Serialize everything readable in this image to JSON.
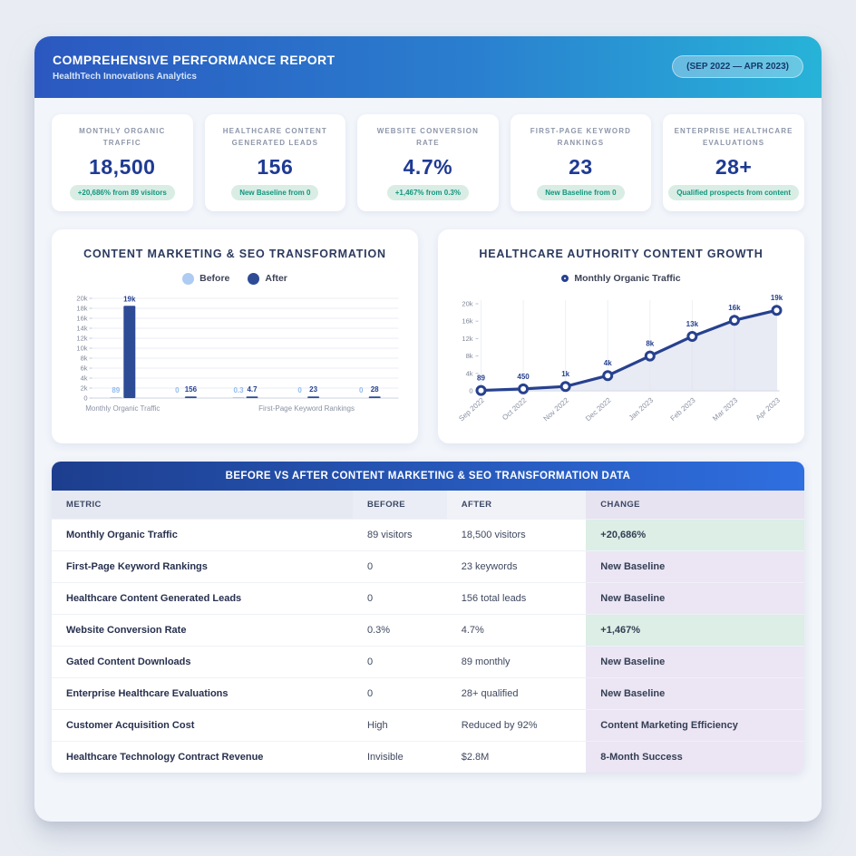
{
  "header": {
    "title": "COMPREHENSIVE PERFORMANCE REPORT",
    "subtitle": "HealthTech Innovations Analytics",
    "period_badge": "(SEP 2022 — APR 2023)"
  },
  "kpis": [
    {
      "label": "MONTHLY ORGANIC TRAFFIC",
      "value": "18,500",
      "badge": "+20,686% from 89 visitors"
    },
    {
      "label": "HEALTHCARE CONTENT GENERATED LEADS",
      "value": "156",
      "badge": "New Baseline from 0"
    },
    {
      "label": "WEBSITE CONVERSION RATE",
      "value": "4.7%",
      "badge": "+1,467% from 0.3%"
    },
    {
      "label": "FIRST-PAGE KEYWORD RANKINGS",
      "value": "23",
      "badge": "New Baseline from 0"
    },
    {
      "label": "ENTERPRISE HEALTHCARE EVALUATIONS",
      "value": "28+",
      "badge": "Qualified prospects from content"
    }
  ],
  "chart_data": [
    {
      "type": "bar",
      "title": "CONTENT MARKETING & SEO TRANSFORMATION",
      "categories": [
        "Monthly Organic Traffic",
        "Healthcare Content Generated Leads",
        "Website Conversion Rate",
        "First-Page Keyword Rankings",
        "Enterprise Healthcare Evaluations"
      ],
      "x_axis_labels_shown": [
        {
          "index": 0,
          "label": "Monthly Organic Traffic"
        },
        {
          "index": 3,
          "label": "First-Page Keyword Rankings"
        }
      ],
      "series": [
        {
          "name": "Before",
          "values": [
            89,
            0,
            0.3,
            0,
            0
          ],
          "labels": [
            "89",
            "0",
            "0.3",
            "0",
            "0"
          ],
          "color": "#aecbf2"
        },
        {
          "name": "After",
          "values": [
            18500,
            156,
            4.7,
            23,
            28
          ],
          "labels": [
            "19k",
            "156",
            "4.7",
            "23",
            "28"
          ],
          "color": "#2e4b96"
        }
      ],
      "ylim": [
        0,
        20000
      ],
      "y_ticks": [
        "0",
        "2k",
        "4k",
        "6k",
        "8k",
        "10k",
        "12k",
        "14k",
        "16k",
        "18k",
        "20k"
      ],
      "grid": "horizontal",
      "legend_position": "top"
    },
    {
      "type": "line",
      "title": "HEALTHCARE AUTHORITY CONTENT GROWTH",
      "x": [
        "Sep 2022",
        "Oct 2022",
        "Nov 2022",
        "Dec 2022",
        "Jan 2023",
        "Feb 2023",
        "Mar 2023",
        "Apr 2023"
      ],
      "series": [
        {
          "name": "Monthly Organic Traffic",
          "values": [
            89,
            450,
            1000,
            3500,
            8000,
            12500,
            16200,
            18500
          ],
          "labels": [
            "89",
            "450",
            "1k",
            "4k",
            "8k",
            "13k",
            "16k",
            "19k"
          ],
          "color": "#27418f"
        }
      ],
      "ylim": [
        0,
        20000
      ],
      "y_ticks": [
        "0",
        "4k",
        "8k",
        "12k",
        "16k",
        "20k"
      ],
      "grid": "vertical",
      "area_fill": true,
      "area_color": "#dce1ed",
      "legend_position": "top"
    }
  ],
  "table": {
    "title": "BEFORE VS AFTER CONTENT MARKETING & SEO TRANSFORMATION DATA",
    "columns": [
      "METRIC",
      "BEFORE",
      "AFTER",
      "CHANGE"
    ],
    "rows": [
      {
        "metric": "Monthly Organic Traffic",
        "before": "89 visitors",
        "after": "18,500 visitors",
        "change": "+20,686%",
        "change_type": "green"
      },
      {
        "metric": "First-Page Keyword Rankings",
        "before": "0",
        "after": "23 keywords",
        "change": "New Baseline",
        "change_type": "purple"
      },
      {
        "metric": "Healthcare Content Generated Leads",
        "before": "0",
        "after": "156 total leads",
        "change": "New Baseline",
        "change_type": "purple"
      },
      {
        "metric": "Website Conversion Rate",
        "before": "0.3%",
        "after": "4.7%",
        "change": "+1,467%",
        "change_type": "green"
      },
      {
        "metric": "Gated Content Downloads",
        "before": "0",
        "after": "89 monthly",
        "change": "New Baseline",
        "change_type": "purple"
      },
      {
        "metric": "Enterprise Healthcare Evaluations",
        "before": "0",
        "after": "28+ qualified",
        "change": "New Baseline",
        "change_type": "purple"
      },
      {
        "metric": "Customer Acquisition Cost",
        "before": "High",
        "after": "Reduced by 92%",
        "change": "Content Marketing Efficiency",
        "change_type": "purple"
      },
      {
        "metric": "Healthcare Technology Contract Revenue",
        "before": "Invisible",
        "after": "$2.8M",
        "change": "8-Month Success",
        "change_type": "purple"
      }
    ]
  },
  "colors": {
    "header_gradient_start": "#2b58c0",
    "header_gradient_end": "#27b3d8",
    "kpi_value": "#1e3a93",
    "kpi_badge_bg": "#d9ede5",
    "kpi_badge_text": "#12967d",
    "bar_before": "#aecbf2",
    "bar_after": "#2e4b96",
    "line_series": "#27418f",
    "table_header_gradient_start": "#1d3e8e",
    "table_header_gradient_end": "#2f6fe0",
    "change_green_bg": "#dceee6",
    "change_purple_bg": "#ebe5f4"
  }
}
